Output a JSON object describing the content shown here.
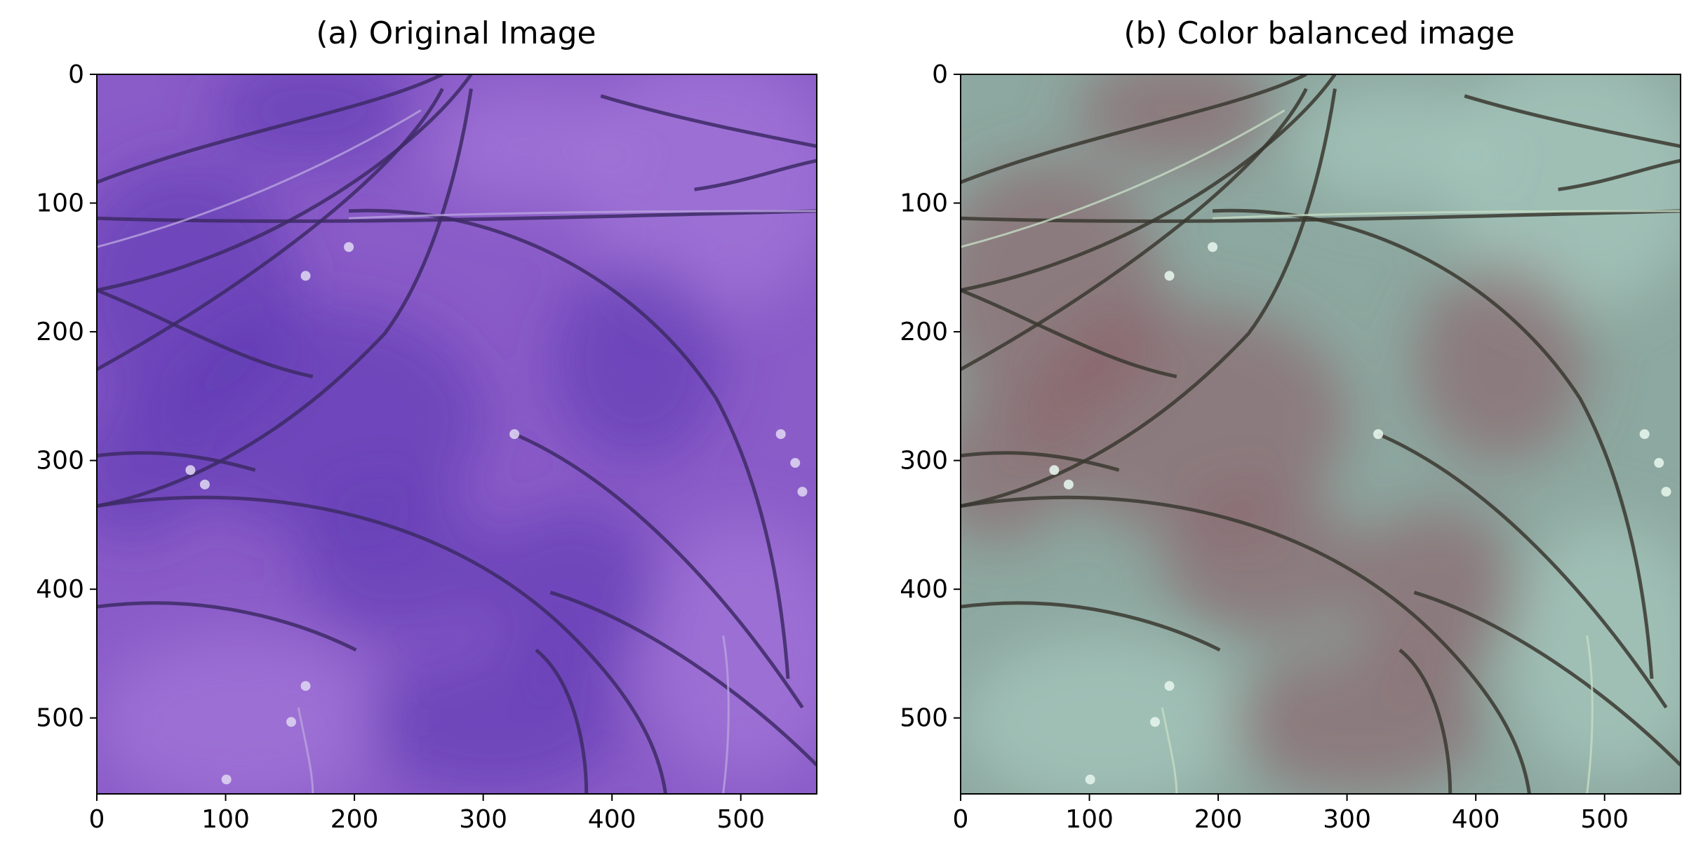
{
  "panels": [
    {
      "title": "(a) Original Image",
      "palette": {
        "base": "#8a5cc8",
        "light": "#a478d8",
        "dark": "#5a35b0",
        "hair": "#3d2a66",
        "hair_light": "#b9a3df",
        "speck": "#dcd2f0"
      }
    },
    {
      "title": "(b) Color balanced image",
      "palette": {
        "base": "#8da8a0",
        "light": "#a6c9bd",
        "dark": "#8a5560",
        "hair": "#3a3830",
        "hair_light": "#c6dcc4",
        "speck": "#e3f3ea"
      }
    }
  ],
  "axes": {
    "x_ticks": [
      "0",
      "100",
      "200",
      "300",
      "400",
      "500"
    ],
    "y_ticks": [
      "0",
      "100",
      "200",
      "300",
      "400",
      "500"
    ],
    "x_range": [
      0,
      559
    ],
    "y_range": [
      0,
      559
    ]
  }
}
